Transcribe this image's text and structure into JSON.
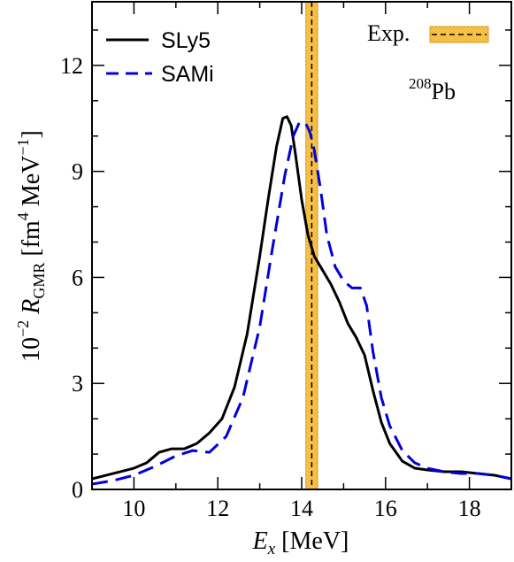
{
  "chart_data": {
    "type": "line",
    "xlabel": {
      "main": "E",
      "sub": "x",
      "unit": " [MeV]"
    },
    "ylabel": {
      "prefix": "10",
      "prefix_exp": "−2",
      "main": " R",
      "sub": "GMR",
      "unit_open": "  [fm",
      "unit_exp1": "4",
      "unit_mid": " MeV",
      "unit_exp2": "−1",
      "unit_close": "]"
    },
    "xlim": [
      9,
      19
    ],
    "ylim": [
      0,
      13.8
    ],
    "xticks": [
      10,
      12,
      14,
      16,
      18
    ],
    "yticks": [
      0,
      3,
      6,
      9,
      12
    ],
    "series": [
      {
        "name": "SLy5",
        "color": "#000000",
        "dash": "solid",
        "x": [
          9.0,
          9.5,
          10.0,
          10.3,
          10.6,
          10.9,
          11.2,
          11.5,
          11.8,
          12.1,
          12.4,
          12.7,
          13.0,
          13.2,
          13.4,
          13.55,
          13.65,
          13.75,
          13.85,
          14.0,
          14.15,
          14.3,
          14.5,
          14.7,
          14.9,
          15.1,
          15.3,
          15.5,
          15.7,
          15.9,
          16.1,
          16.4,
          16.7,
          17.0,
          17.4,
          17.8,
          18.2,
          18.6,
          19.0
        ],
        "y": [
          0.3,
          0.45,
          0.6,
          0.75,
          1.05,
          1.15,
          1.15,
          1.3,
          1.6,
          2.0,
          2.9,
          4.4,
          6.6,
          8.2,
          9.7,
          10.5,
          10.55,
          10.3,
          9.5,
          8.2,
          7.2,
          6.6,
          6.2,
          5.8,
          5.3,
          4.7,
          4.3,
          3.8,
          2.8,
          1.9,
          1.3,
          0.8,
          0.6,
          0.55,
          0.5,
          0.5,
          0.45,
          0.4,
          0.3
        ]
      },
      {
        "name": "SAMi",
        "color": "#0000dd",
        "dash": "dashed",
        "x": [
          9.0,
          9.5,
          10.0,
          10.5,
          11.0,
          11.4,
          11.8,
          12.2,
          12.6,
          13.0,
          13.3,
          13.6,
          13.8,
          13.95,
          14.1,
          14.2,
          14.3,
          14.45,
          14.6,
          14.8,
          15.0,
          15.2,
          15.4,
          15.55,
          15.7,
          15.9,
          16.1,
          16.4,
          16.7,
          17.0,
          17.4,
          17.8,
          18.2,
          18.6,
          19.0
        ],
        "y": [
          0.15,
          0.25,
          0.4,
          0.65,
          0.95,
          1.1,
          1.05,
          1.5,
          2.6,
          4.6,
          6.8,
          8.9,
          10.0,
          10.4,
          10.35,
          10.1,
          9.6,
          8.5,
          7.2,
          6.3,
          5.9,
          5.7,
          5.7,
          5.2,
          3.9,
          2.6,
          1.8,
          1.1,
          0.75,
          0.6,
          0.5,
          0.45,
          0.45,
          0.4,
          0.3
        ]
      }
    ],
    "experiment": {
      "label": "Exp.",
      "center": 14.24,
      "low": 14.1,
      "high": 14.38,
      "band_color": "#f5b731"
    },
    "annotation": {
      "sup": "208",
      "text": "Pb"
    },
    "legend_placement": "top-left"
  }
}
